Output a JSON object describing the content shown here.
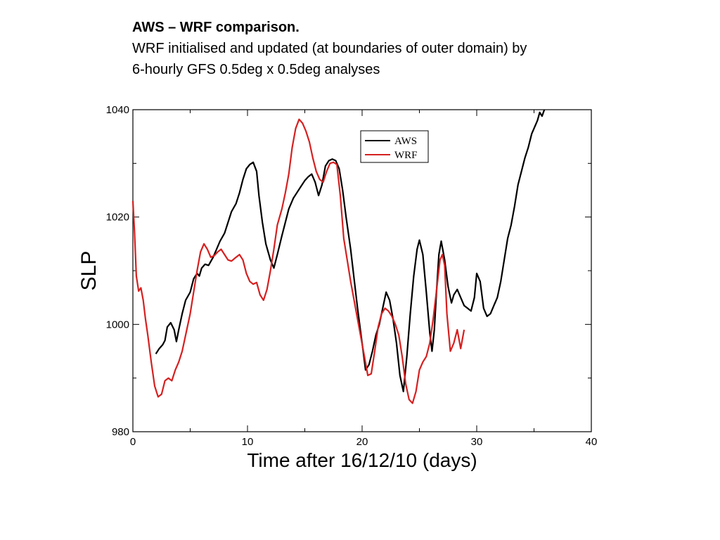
{
  "heading": {
    "title": "AWS – WRF comparison.",
    "line1": "WRF initialised and updated (at boundaries of outer domain) by",
    "line2": "6-hourly GFS 0.5deg x 0.5deg analyses"
  },
  "chart_data": {
    "type": "line",
    "xlabel": "Time after 16/12/10 (days)",
    "ylabel": "SLP",
    "xlim": [
      0,
      40
    ],
    "ylim": [
      980,
      1040
    ],
    "xticks": [
      0,
      10,
      20,
      30,
      40
    ],
    "yticks": [
      980,
      1000,
      1020,
      1040
    ],
    "x_minor_step": 5,
    "y_minor_step": 10,
    "grid": false,
    "legend_position": "top-right",
    "series": [
      {
        "name": "AWS",
        "color": "#000000",
        "x": [
          2.0,
          2.3,
          2.6,
          2.8,
          3.0,
          3.3,
          3.6,
          3.8,
          4.0,
          4.3,
          4.6,
          5.0,
          5.3,
          5.6,
          5.8,
          6.0,
          6.3,
          6.6,
          7.0,
          7.3,
          7.6,
          8.0,
          8.3,
          8.6,
          9.0,
          9.3,
          9.6,
          9.9,
          10.2,
          10.5,
          10.8,
          11.0,
          11.3,
          11.6,
          12.0,
          12.3,
          12.6,
          13.0,
          13.3,
          13.6,
          14.0,
          14.3,
          14.6,
          15.0,
          15.3,
          15.6,
          15.9,
          16.2,
          16.5,
          16.8,
          17.1,
          17.4,
          17.7,
          18.0,
          18.3,
          18.6,
          19.0,
          19.3,
          19.6,
          20.0,
          20.3,
          20.6,
          20.9,
          21.2,
          21.5,
          21.8,
          22.1,
          22.4,
          22.7,
          23.0,
          23.3,
          23.6,
          23.9,
          24.2,
          24.5,
          24.8,
          25.0,
          25.3,
          25.6,
          25.9,
          26.1,
          26.3,
          26.5,
          26.7,
          26.9,
          27.2,
          27.5,
          27.8,
          28.0,
          28.3,
          28.6,
          28.9,
          29.2,
          29.5,
          29.8,
          30.0,
          30.3,
          30.6,
          30.9,
          31.2,
          31.5,
          31.8,
          32.1,
          32.4,
          32.7,
          33.0,
          33.3,
          33.6,
          33.9,
          34.2,
          34.5,
          34.8,
          35.0,
          35.3,
          35.5,
          35.7,
          35.9
        ],
        "y": [
          994.5,
          995.5,
          996.2,
          997.0,
          999.5,
          1000.3,
          999.0,
          996.8,
          999.0,
          1002.0,
          1004.5,
          1006.0,
          1008.5,
          1009.5,
          1009.0,
          1010.5,
          1011.2,
          1011.0,
          1012.5,
          1014.0,
          1015.5,
          1017.0,
          1019.0,
          1021.0,
          1022.5,
          1024.5,
          1027.0,
          1029.0,
          1029.8,
          1030.2,
          1028.5,
          1024.0,
          1019.0,
          1015.0,
          1012.0,
          1010.5,
          1013.0,
          1016.5,
          1019.0,
          1021.5,
          1023.5,
          1024.5,
          1025.5,
          1026.8,
          1027.5,
          1028.0,
          1026.5,
          1024.0,
          1026.0,
          1029.5,
          1030.5,
          1030.8,
          1030.5,
          1029.0,
          1025.0,
          1020.0,
          1014.0,
          1008.5,
          1003.0,
          996.5,
          991.5,
          992.5,
          995.0,
          998.0,
          1000.0,
          1003.0,
          1006.0,
          1004.5,
          1001.0,
          996.5,
          990.5,
          987.5,
          994.0,
          1002.0,
          1009.0,
          1014.0,
          1015.7,
          1013.0,
          1006.0,
          998.5,
          995.0,
          999.0,
          1006.5,
          1013.0,
          1015.5,
          1012.0,
          1007.0,
          1004.0,
          1005.5,
          1006.5,
          1005.0,
          1003.5,
          1003.0,
          1002.5,
          1005.0,
          1009.5,
          1008.0,
          1003.0,
          1001.5,
          1002.0,
          1003.5,
          1005.0,
          1008.0,
          1012.0,
          1016.0,
          1018.5,
          1022.0,
          1026.0,
          1028.5,
          1031.0,
          1033.0,
          1035.5,
          1036.5,
          1038.0,
          1039.5,
          1038.8,
          1040.0
        ]
      },
      {
        "name": "WRF",
        "color": "#d62020",
        "x": [
          0.0,
          0.15,
          0.3,
          0.5,
          0.7,
          0.9,
          1.1,
          1.3,
          1.6,
          1.9,
          2.2,
          2.5,
          2.8,
          3.1,
          3.4,
          3.7,
          4.0,
          4.3,
          4.6,
          5.0,
          5.3,
          5.6,
          5.9,
          6.2,
          6.5,
          6.8,
          7.1,
          7.4,
          7.7,
          8.0,
          8.3,
          8.6,
          9.0,
          9.3,
          9.6,
          9.9,
          10.2,
          10.5,
          10.8,
          11.1,
          11.4,
          11.7,
          12.0,
          12.3,
          12.6,
          13.0,
          13.3,
          13.6,
          13.9,
          14.2,
          14.5,
          14.8,
          15.1,
          15.4,
          15.7,
          16.0,
          16.3,
          16.6,
          16.9,
          17.2,
          17.5,
          17.8,
          18.1,
          18.4,
          18.7,
          19.0,
          19.3,
          19.6,
          19.9,
          20.2,
          20.5,
          20.8,
          21.1,
          21.4,
          21.7,
          22.0,
          22.3,
          22.6,
          22.9,
          23.2,
          23.5,
          23.8,
          24.1,
          24.4,
          24.7,
          25.0,
          25.3,
          25.6,
          25.9,
          26.2,
          26.5,
          26.8,
          27.0,
          27.2,
          27.4,
          27.7,
          28.0,
          28.3,
          28.6,
          28.9
        ],
        "y": [
          1023.0,
          1017.0,
          1009.0,
          1006.2,
          1006.8,
          1004.5,
          1001.0,
          998.0,
          993.0,
          988.5,
          986.5,
          987.0,
          989.5,
          990.0,
          989.5,
          991.5,
          993.0,
          995.0,
          998.0,
          1002.0,
          1006.0,
          1010.0,
          1013.5,
          1015.0,
          1014.0,
          1012.5,
          1012.8,
          1013.5,
          1014.0,
          1013.0,
          1012.0,
          1011.8,
          1012.5,
          1013.0,
          1012.0,
          1009.5,
          1008.0,
          1007.5,
          1007.8,
          1005.5,
          1004.5,
          1006.5,
          1010.0,
          1014.0,
          1018.5,
          1021.5,
          1024.5,
          1028.0,
          1033.0,
          1036.5,
          1038.2,
          1037.5,
          1036.0,
          1034.0,
          1031.0,
          1028.5,
          1027.0,
          1026.5,
          1028.5,
          1030.0,
          1030.2,
          1029.8,
          1024.0,
          1016.0,
          1012.0,
          1008.0,
          1004.5,
          1001.0,
          997.5,
          994.0,
          990.5,
          990.8,
          995.0,
          999.5,
          1002.0,
          1003.0,
          1002.5,
          1001.5,
          1000.0,
          998.0,
          994.0,
          989.0,
          986.0,
          985.3,
          987.5,
          991.5,
          993.0,
          994.0,
          996.5,
          1001.0,
          1006.5,
          1012.0,
          1013.0,
          1011.0,
          1002.0,
          995.0,
          996.5,
          999.0,
          995.5,
          999.0
        ]
      }
    ]
  }
}
